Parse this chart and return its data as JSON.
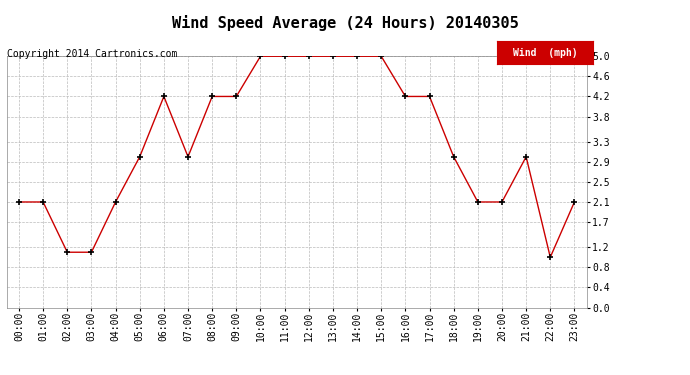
{
  "title": "Wind Speed Average (24 Hours) 20140305",
  "copyright_text": "Copyright 2014 Cartronics.com",
  "legend_label": "Wind  (mph)",
  "hours": [
    "00:00",
    "01:00",
    "02:00",
    "03:00",
    "04:00",
    "05:00",
    "06:00",
    "07:00",
    "08:00",
    "09:00",
    "10:00",
    "11:00",
    "12:00",
    "13:00",
    "14:00",
    "15:00",
    "16:00",
    "17:00",
    "18:00",
    "19:00",
    "20:00",
    "21:00",
    "22:00",
    "23:00"
  ],
  "values": [
    2.1,
    2.1,
    1.1,
    1.1,
    2.1,
    3.0,
    4.2,
    3.0,
    4.2,
    4.2,
    5.0,
    5.0,
    5.0,
    5.0,
    5.0,
    5.0,
    4.2,
    4.2,
    3.0,
    2.1,
    2.1,
    3.0,
    1.0,
    2.1
  ],
  "ylim": [
    0.0,
    5.0
  ],
  "yticks": [
    0.0,
    0.4,
    0.8,
    1.2,
    1.7,
    2.1,
    2.5,
    2.9,
    3.3,
    3.8,
    4.2,
    4.6,
    5.0
  ],
  "line_color": "#cc0000",
  "marker": "+",
  "marker_color": "black",
  "grid_color": "#bbbbbb",
  "background_color": "white",
  "title_fontsize": 11,
  "copyright_fontsize": 7,
  "tick_fontsize": 7,
  "legend_bg": "#cc0000",
  "legend_text_color": "white"
}
